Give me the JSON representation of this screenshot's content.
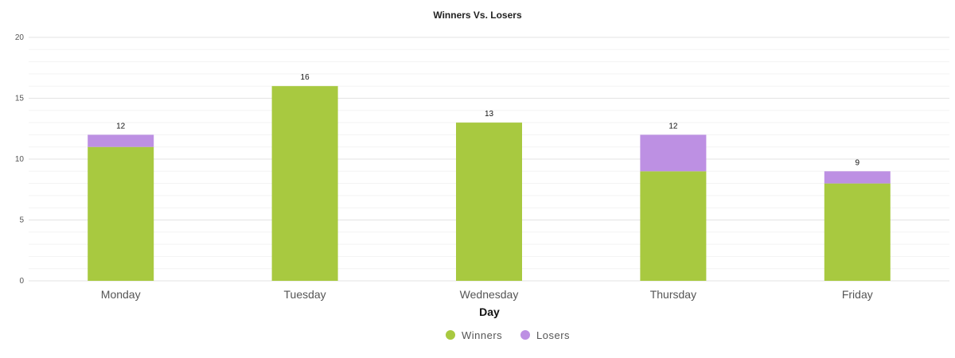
{
  "chart_data": {
    "type": "bar",
    "stacked": true,
    "title": "Winners Vs. Losers",
    "xlabel": "Day",
    "ylabel": "",
    "categories": [
      "Monday",
      "Tuesday",
      "Wednesday",
      "Thursday",
      "Friday"
    ],
    "series": [
      {
        "name": "Winners",
        "values": [
          11,
          16,
          13,
          9,
          8
        ],
        "color": "#a8c940"
      },
      {
        "name": "Losers",
        "values": [
          1,
          0,
          0,
          3,
          1
        ],
        "color": "#bd90e3"
      }
    ],
    "totals": [
      12,
      16,
      13,
      12,
      9
    ],
    "ylim": [
      0,
      20
    ],
    "yticks": [
      0,
      5,
      10,
      15,
      20
    ],
    "grid": true,
    "legend_position": "bottom-center"
  }
}
